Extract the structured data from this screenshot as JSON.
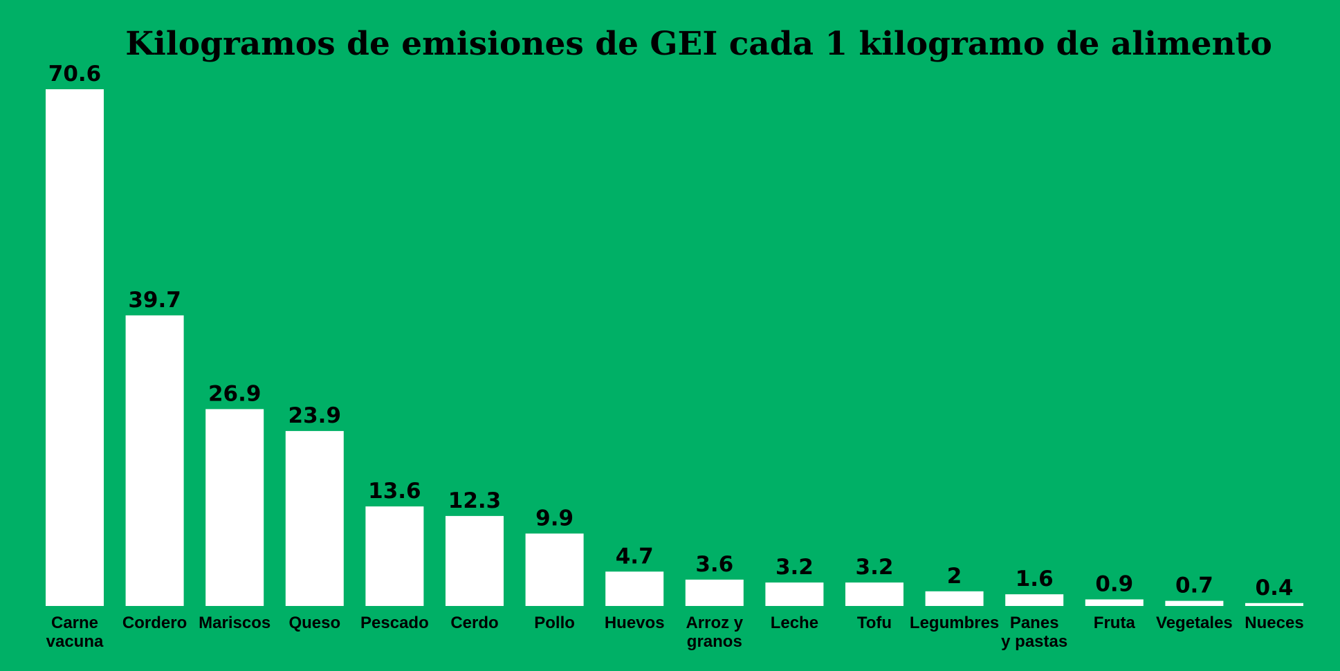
{
  "chart_data": {
    "type": "bar",
    "title": "Kilogramos de emisiones de GEI cada 1 kilogramo de alimento",
    "xlabel": "",
    "ylabel": "",
    "ylim": [
      0,
      70.6
    ],
    "grid": false,
    "legend": "none",
    "categories": [
      [
        "Carne",
        "vacuna"
      ],
      [
        "Cordero"
      ],
      [
        "Mariscos"
      ],
      [
        "Queso"
      ],
      [
        "Pescado"
      ],
      [
        "Cerdo"
      ],
      [
        "Pollo"
      ],
      [
        "Huevos"
      ],
      [
        "Arroz y",
        "granos"
      ],
      [
        "Leche"
      ],
      [
        "Tofu"
      ],
      [
        "Legumbres"
      ],
      [
        "Panes",
        "y pastas"
      ],
      [
        "Fruta"
      ],
      [
        "Vegetales"
      ],
      [
        "Nueces"
      ]
    ],
    "values": [
      70.6,
      39.7,
      26.9,
      23.9,
      13.6,
      12.3,
      9.9,
      4.7,
      3.6,
      3.2,
      3.2,
      2,
      1.6,
      0.9,
      0.7,
      0.4
    ],
    "value_labels": [
      "70.6",
      "39.7",
      "26.9",
      "23.9",
      "13.6",
      "12.3",
      "9.9",
      "4.7",
      "3.6",
      "3.2",
      "3.2",
      "2",
      "1.6",
      "0.9",
      "0.7",
      "0.4"
    ],
    "colors": {
      "background": "#00B066",
      "bar": "#FFFFFF",
      "text": "#000000"
    }
  }
}
